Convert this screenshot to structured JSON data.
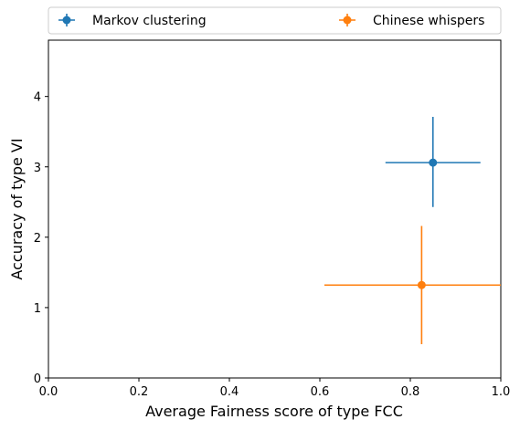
{
  "chart_data": {
    "type": "scatter",
    "title": "",
    "xlabel": "Average Fairness score of type FCC",
    "ylabel": "Accuracy of type VI",
    "xlim": [
      0,
      1.0
    ],
    "ylim": [
      0,
      4.8
    ],
    "xticks": [
      0.0,
      0.2,
      0.4,
      0.6,
      0.8,
      1.0
    ],
    "yticks": [
      0,
      1,
      2,
      3,
      4
    ],
    "grid": false,
    "legend_position": "top, outside plot, spanning width",
    "series": [
      {
        "name": "Markov clustering",
        "color": "#1f77b4",
        "x": 0.85,
        "y": 3.06,
        "x_err": [
          0.745,
          0.955
        ],
        "y_err": [
          2.43,
          3.71
        ]
      },
      {
        "name": "Chinese whispers",
        "color": "#ff7f0e",
        "x": 0.825,
        "y": 1.32,
        "x_err": [
          0.61,
          1.04
        ],
        "y_err": [
          0.48,
          2.16
        ]
      }
    ]
  }
}
